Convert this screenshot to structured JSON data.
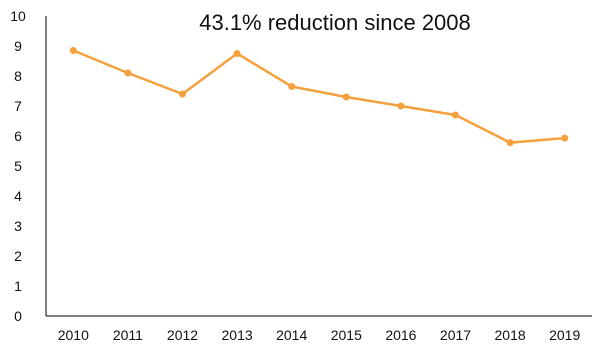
{
  "chart_data": {
    "type": "line",
    "annotation": "43.1% reduction since 2008",
    "x": [
      "2010",
      "2011",
      "2012",
      "2013",
      "2014",
      "2015",
      "2016",
      "2017",
      "2018",
      "2019"
    ],
    "series": [
      {
        "values": [
          8.85,
          8.1,
          7.4,
          8.75,
          7.65,
          7.3,
          7.0,
          6.7,
          5.78,
          5.93
        ]
      }
    ],
    "yticks": [
      "0",
      "1",
      "2",
      "3",
      "4",
      "5",
      "6",
      "7",
      "8",
      "9",
      "10"
    ],
    "ylim": [
      0,
      10
    ],
    "grid": false,
    "line_color": "#F4A03D",
    "axis_color": "#000000"
  }
}
